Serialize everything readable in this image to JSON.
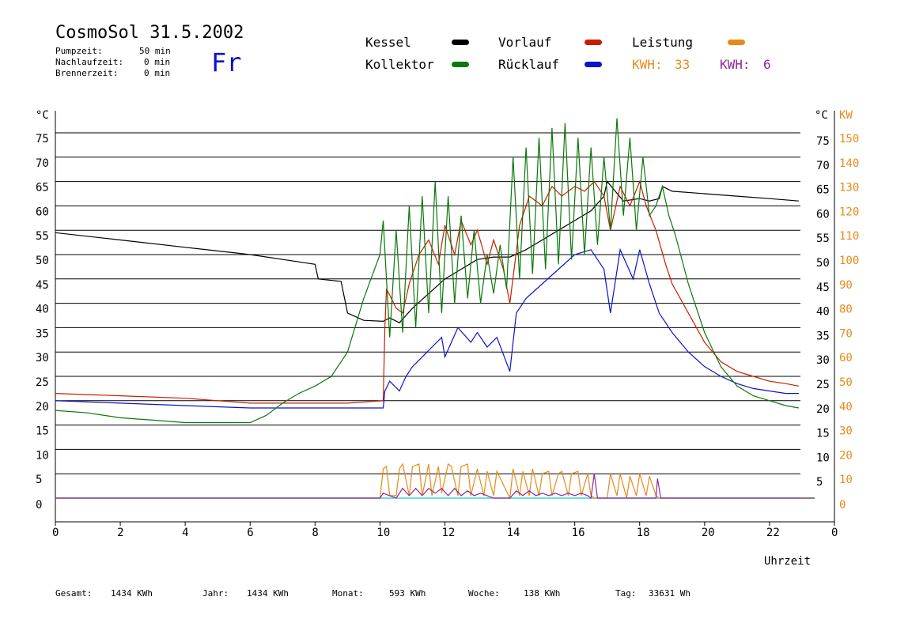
{
  "header": {
    "title": "CosmoSol 31.5.2002",
    "day": "Fr",
    "info": [
      {
        "label": "Pumpzeit:",
        "value": "50 min"
      },
      {
        "label": "Nachlaufzeit:",
        "value": "0 min"
      },
      {
        "label": "Brennerzeit:",
        "value": "0 min"
      }
    ]
  },
  "legend": {
    "kessel": "Kessel",
    "kollektor": "Kollektor",
    "vorlauf": "Vorlauf",
    "ruecklauf": "Rücklauf",
    "leistung": "Leistung",
    "kwh_orange_label": "KWH:",
    "kwh_orange_value": "33",
    "kwh_purple_label": "KWH:",
    "kwh_purple_value": "6"
  },
  "colors": {
    "kessel": "#000000",
    "kollektor": "#0a780a",
    "vorlauf": "#c81e00",
    "ruecklauf": "#0a14c8",
    "leistung": "#e88a1a",
    "kwh_purple": "#8a2a9a",
    "baseline": "#40d0d0"
  },
  "footer": [
    {
      "label": "Gesamt:",
      "value": "1434 KWh"
    },
    {
      "label": "Jahr:",
      "value": "1434 KWh"
    },
    {
      "label": "Monat:",
      "value": "593 KWh"
    },
    {
      "label": "Woche:",
      "value": "138 KWh"
    },
    {
      "label": "Tag:",
      "value": "33631 Wh"
    }
  ],
  "chart_data": {
    "type": "line",
    "xlabel": "Uhrzeit",
    "xlim": [
      0,
      24
    ],
    "x_ticks": [
      "0",
      "2",
      "4",
      "6",
      "8",
      "10",
      "12",
      "14",
      "16",
      "18",
      "20",
      "22",
      "0"
    ],
    "ylabel_left": "°C",
    "ylabel_right": "°C",
    "ylabel_right2": "KW",
    "ylim": [
      0,
      75
    ],
    "y_ticks": [
      "0",
      "5",
      "10",
      "15",
      "20",
      "25",
      "30",
      "35",
      "40",
      "45",
      "50",
      "55",
      "60",
      "65",
      "70",
      "75"
    ],
    "y2_ticks": [
      "0",
      "10",
      "20",
      "30",
      "40",
      "50",
      "60",
      "70",
      "80",
      "90",
      "100",
      "110",
      "120",
      "130",
      "140",
      "150"
    ],
    "grid": true,
    "series": [
      {
        "name": "Kessel",
        "key": "kessel",
        "x": [
          0,
          2,
          4,
          6,
          7.5,
          8,
          8.1,
          8.8,
          9,
          9.5,
          10.1,
          10.3,
          10.6,
          11,
          11.5,
          12,
          12.5,
          13,
          13.5,
          14,
          14.5,
          15,
          15.5,
          16,
          16.5,
          16.9,
          17,
          17.5,
          18,
          18.3,
          18.6,
          18.7,
          19,
          20,
          21,
          22,
          22.9
        ],
        "y": [
          54.5,
          53,
          51.5,
          50,
          48.5,
          48,
          45,
          44.5,
          38,
          36.5,
          36.3,
          37,
          36,
          39,
          42,
          45,
          47,
          49,
          49.5,
          49.5,
          51,
          53,
          55,
          57,
          59,
          62,
          65,
          61,
          61.5,
          61,
          61.5,
          64,
          63,
          62.5,
          62,
          61.5,
          61
        ]
      },
      {
        "name": "Vorlauf",
        "key": "vorlauf",
        "x": [
          0,
          2,
          4,
          6,
          8,
          9,
          10.1,
          10.15,
          10.2,
          10.5,
          10.7,
          10.9,
          11.2,
          11.5,
          11.8,
          12,
          12.3,
          12.5,
          12.8,
          13,
          13.3,
          13.5,
          13.8,
          14,
          14.3,
          14.6,
          15,
          15.3,
          15.6,
          16,
          16.3,
          16.6,
          16.9,
          17.1,
          17.4,
          17.7,
          18,
          18.2,
          18.5,
          18.8,
          19,
          19.5,
          20,
          20.5,
          21,
          21.5,
          22,
          22.5,
          22.9
        ],
        "y": [
          21.5,
          21,
          20.5,
          19.5,
          19.5,
          19.5,
          20,
          35,
          43,
          39,
          38,
          44,
          50,
          53,
          48,
          56,
          50,
          57,
          52,
          55,
          48,
          53,
          47,
          40,
          56,
          62,
          60,
          64,
          62,
          64,
          63,
          65,
          62,
          55,
          64,
          60,
          65,
          60,
          55,
          48,
          44,
          38,
          32,
          28,
          26,
          25,
          24,
          23.5,
          23
        ]
      },
      {
        "name": "Rücklauf",
        "key": "ruecklauf",
        "x": [
          0,
          2,
          4,
          6,
          8,
          9,
          10.1,
          10.15,
          10.3,
          10.6,
          10.8,
          11,
          11.3,
          11.6,
          11.9,
          12,
          12.4,
          12.8,
          13,
          13.3,
          13.6,
          14,
          14.2,
          14.5,
          15,
          15.5,
          16,
          16.5,
          16.9,
          17.1,
          17.4,
          17.8,
          18,
          18.3,
          18.6,
          19,
          19.5,
          20,
          20.5,
          21,
          21.5,
          22,
          22.5,
          22.9
        ],
        "y": [
          20,
          19.5,
          19,
          18.5,
          18.5,
          18.5,
          18.5,
          22,
          24,
          22,
          25,
          27,
          29,
          31,
          33,
          29,
          35,
          32,
          34,
          31,
          33,
          26,
          38,
          41,
          44,
          47,
          50,
          51,
          47,
          38,
          51,
          45,
          51,
          44,
          38,
          34,
          30,
          27,
          25,
          23.5,
          22.5,
          22,
          21.5,
          21.5
        ]
      },
      {
        "name": "Kollektor",
        "key": "kollektor",
        "x": [
          0,
          1,
          2,
          3,
          4,
          5,
          6,
          6.5,
          7,
          7.5,
          8,
          8.5,
          9,
          9.5,
          10,
          10.1,
          10.3,
          10.5,
          10.7,
          10.9,
          11.1,
          11.3,
          11.5,
          11.7,
          11.9,
          12.1,
          12.3,
          12.5,
          12.7,
          12.9,
          13.1,
          13.3,
          13.5,
          13.7,
          13.9,
          14.1,
          14.3,
          14.5,
          14.7,
          14.9,
          15.1,
          15.3,
          15.5,
          15.7,
          15.9,
          16.1,
          16.3,
          16.5,
          16.7,
          16.9,
          17.1,
          17.3,
          17.5,
          17.7,
          17.9,
          18.1,
          18.3,
          18.5,
          18.7,
          18.9,
          19.1,
          19.5,
          20,
          20.5,
          21,
          21.5,
          22,
          22.5,
          22.9
        ],
        "y": [
          18,
          17.5,
          16.5,
          16,
          15.5,
          15.5,
          15.5,
          17,
          19.5,
          21.5,
          23,
          25,
          30,
          41,
          50,
          57,
          33,
          55,
          34,
          60,
          35,
          62,
          38,
          65,
          38,
          62,
          40,
          58,
          41,
          55,
          40,
          50,
          42,
          52,
          43,
          70,
          45,
          72,
          46,
          74,
          47,
          76,
          48,
          77,
          49,
          74,
          50,
          72,
          52,
          70,
          55,
          78,
          58,
          74,
          55,
          70,
          58,
          60,
          64,
          58,
          54,
          44,
          34,
          27,
          23,
          21,
          20,
          19,
          18.5
        ]
      }
    ],
    "power_series": [
      {
        "name": "Leistung",
        "key": "leistung",
        "axis": "KW",
        "x": [
          0,
          10,
          10.1,
          10.2,
          10.3,
          10.5,
          10.6,
          10.7,
          10.9,
          11,
          11.2,
          11.3,
          11.5,
          11.6,
          11.8,
          11.9,
          12.1,
          12.2,
          12.4,
          12.5,
          12.7,
          12.8,
          13.0,
          13.2,
          13.3,
          13.5,
          13.6,
          14,
          14.1,
          14.3,
          14.4,
          14.6,
          14.7,
          14.9,
          15.0,
          15.2,
          15.3,
          15.5,
          15.6,
          15.8,
          15.9,
          16.1,
          16.2,
          16.4,
          16.5,
          16.6,
          17,
          17.1,
          17.3,
          17.4,
          17.6,
          17.7,
          17.9,
          18.0,
          18.2,
          18.3,
          18.5,
          18.6,
          19,
          23
        ],
        "y": [
          0,
          0,
          12,
          13,
          1,
          1,
          12,
          14,
          1,
          13,
          14,
          1,
          14,
          1,
          13,
          2,
          14,
          13,
          1,
          13,
          14,
          1,
          12,
          1,
          11,
          1,
          11,
          0,
          12,
          1,
          11,
          1,
          12,
          1,
          10,
          11,
          1,
          10,
          11,
          1,
          10,
          11,
          1,
          10,
          1,
          0,
          0,
          10,
          1,
          10,
          0,
          9,
          1,
          10,
          1,
          9,
          1,
          0,
          0,
          0
        ]
      },
      {
        "name": "KWH",
        "key": "kwh_purple",
        "axis": "KW",
        "x": [
          0,
          10,
          10.1,
          10.3,
          10.5,
          10.7,
          10.9,
          11.1,
          11.3,
          11.5,
          11.7,
          11.9,
          12.1,
          12.3,
          12.5,
          12.7,
          12.9,
          13.1,
          13.3,
          13.5,
          14,
          14.2,
          14.4,
          14.6,
          14.8,
          15,
          15.2,
          15.4,
          15.6,
          15.8,
          16,
          16.2,
          16.4,
          16.5,
          16.6,
          16.7,
          18.5,
          18.55,
          18.6,
          18.65,
          23
        ],
        "y": [
          0,
          0,
          2,
          1,
          0,
          4,
          1,
          4,
          1,
          4,
          2,
          4,
          1,
          4,
          1,
          3,
          1,
          2,
          1,
          0,
          0,
          3,
          1,
          3,
          1,
          2,
          1,
          2,
          1,
          2,
          1,
          2,
          1,
          0,
          10,
          0,
          0,
          8,
          4,
          0,
          0
        ]
      }
    ]
  }
}
